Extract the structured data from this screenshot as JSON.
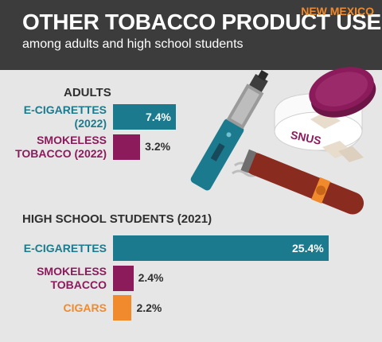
{
  "header": {
    "title": "OTHER TOBACCO PRODUCT USE",
    "subtitle": "among adults and high school students",
    "region": "NEW MEXICO"
  },
  "illustration": {
    "can_label": "SNUS"
  },
  "chart_data": [
    {
      "type": "bar",
      "orientation": "horizontal",
      "title": "ADULTS",
      "categories": [
        "E-CIGARETTES\n(2022)",
        "SMOKELESS\nTOBACCO (2022)"
      ],
      "values": [
        7.4,
        3.2
      ],
      "value_labels": [
        "7.4%",
        "3.2%"
      ],
      "colors": [
        "#1b7a8e",
        "#8c1b5c"
      ]
    },
    {
      "type": "bar",
      "orientation": "horizontal",
      "title": "HIGH SCHOOL STUDENTS (2021)",
      "categories": [
        "E-CIGARETTES",
        "SMOKELESS\nTOBACCO",
        "CIGARS"
      ],
      "values": [
        25.4,
        2.4,
        2.2
      ],
      "value_labels": [
        "25.4%",
        "2.4%",
        "2.2%"
      ],
      "colors": [
        "#1b7a8e",
        "#8c1b5c",
        "#f08a2c"
      ]
    }
  ]
}
